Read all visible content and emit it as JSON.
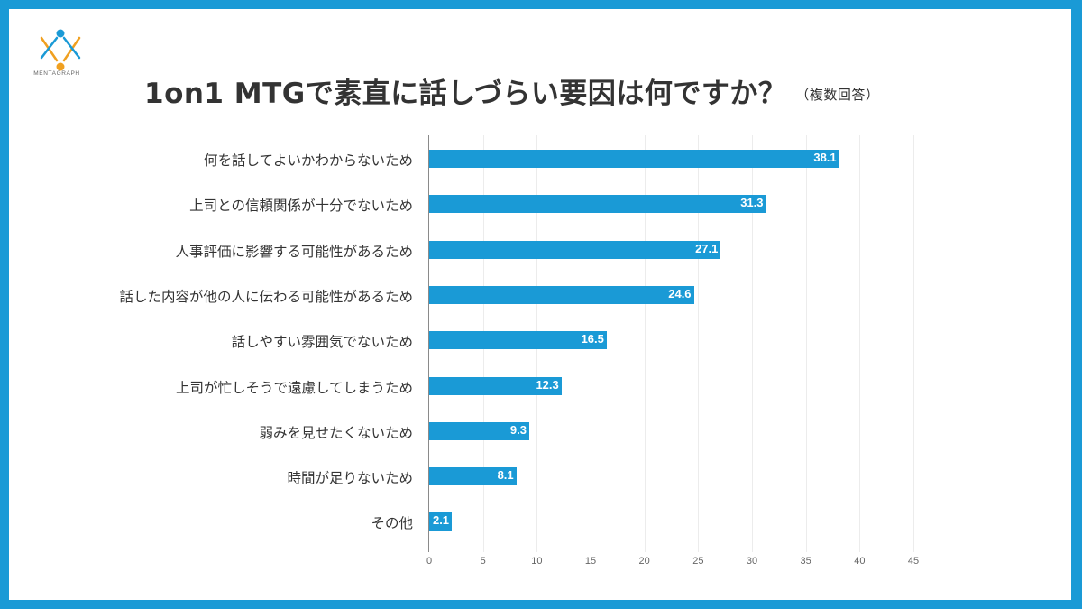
{
  "brand": {
    "name": "MENTAGRAPH",
    "colors": {
      "blue": "#1a9ad6",
      "orange": "#f0a020"
    }
  },
  "title": {
    "main": "1on1 MTGで素直に話しづらい要因は何ですか？",
    "sub": "（複数回答）"
  },
  "chart_data": {
    "type": "bar",
    "orientation": "horizontal",
    "title": "1on1 MTGで素直に話しづらい要因は何ですか？（複数回答）",
    "xlabel": "",
    "ylabel": "",
    "xlim": [
      0,
      45
    ],
    "x_ticks": [
      0,
      5,
      10,
      15,
      20,
      25,
      30,
      35,
      40,
      45
    ],
    "grid": true,
    "legend": null,
    "bar_color": "#1a9ad6",
    "categories": [
      "何を話してよいかわからないため",
      "上司との信頼関係が十分でないため",
      "人事評価に影響する可能性があるため",
      "話した内容が他の人に伝わる可能性があるため",
      "話しやすい雰囲気でないため",
      "上司が忙しそうで遠慮してしまうため",
      "弱みを見せたくないため",
      "時間が足りないため",
      "その他"
    ],
    "values": [
      38.1,
      31.3,
      27.1,
      24.6,
      16.5,
      12.3,
      9.3,
      8.1,
      2.1
    ],
    "value_labels": [
      "38.1",
      "31.3",
      "27.1",
      "24.6",
      "16.5",
      "12.3",
      "9.3",
      "8.1",
      "2.1"
    ]
  }
}
